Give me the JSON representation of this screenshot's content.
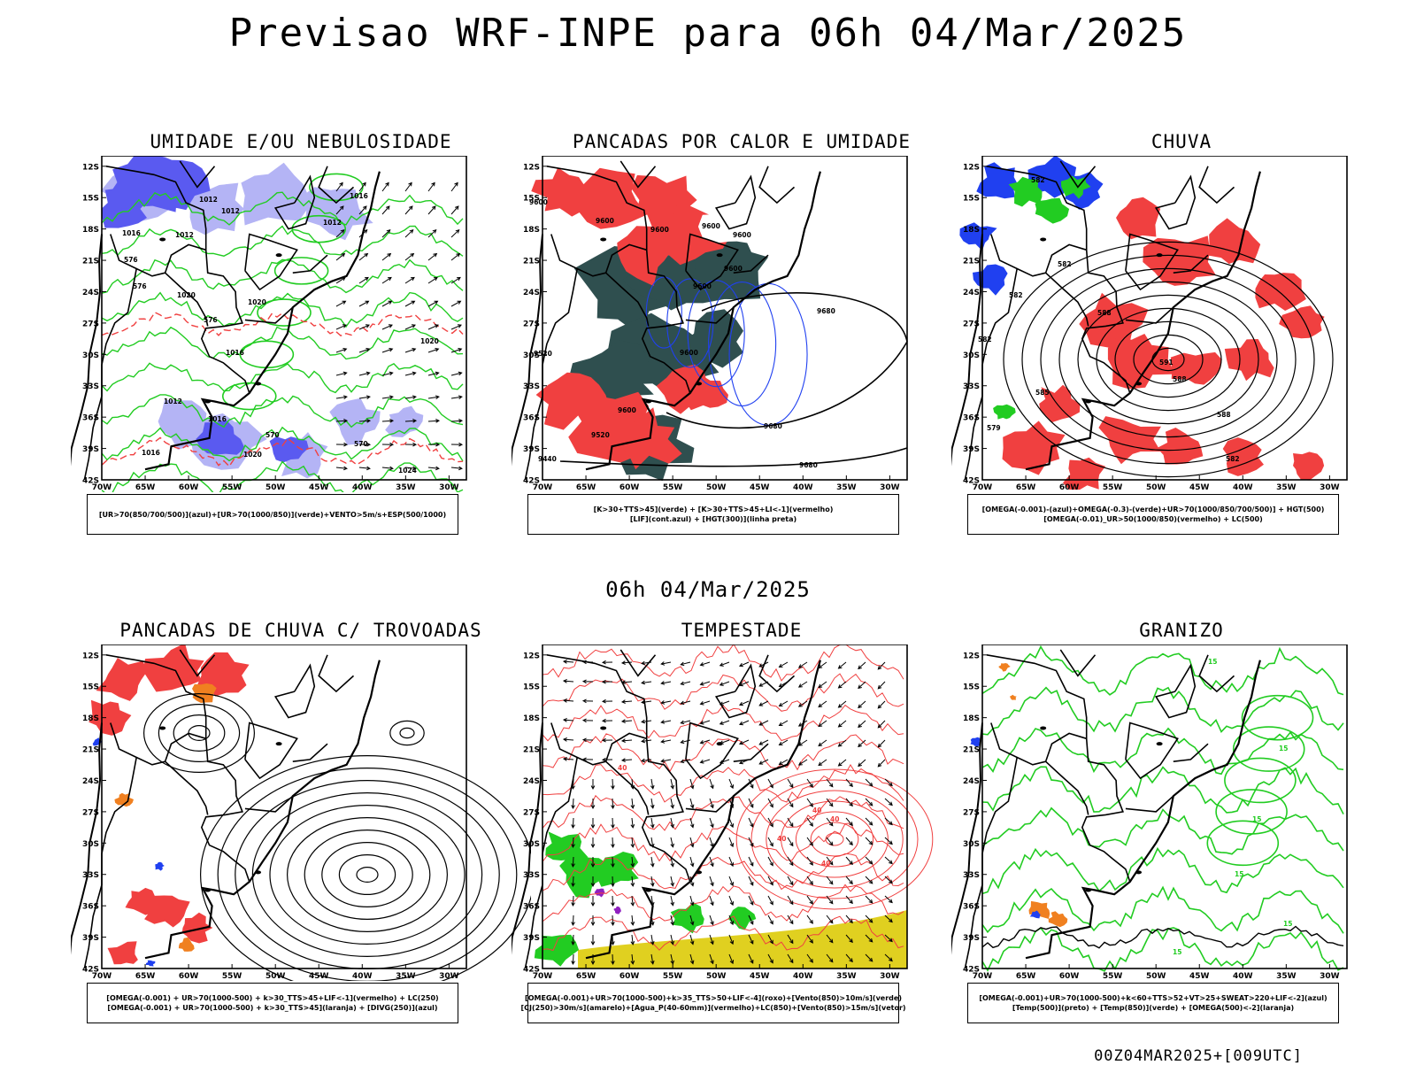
{
  "header": {
    "title": "Previsao WRF-INPE  para 06h 04/Mar/2025"
  },
  "mid_label": "06h 04/Mar/2025",
  "footer": "00Z04MAR2025+[009UTC]",
  "axes": {
    "lat_labels": [
      "12S",
      "15S",
      "18S",
      "21S",
      "24S",
      "27S",
      "30S",
      "33S",
      "36S",
      "39S",
      "42S"
    ],
    "lon_labels": [
      "70W",
      "65W",
      "60W",
      "55W",
      "50W",
      "45W",
      "40W",
      "35W",
      "30W"
    ]
  },
  "colors": {
    "humidity_blue": "#5a5af0",
    "humidity_light": "#b4b4f5",
    "green": "#22cc22",
    "red": "#f04040",
    "darkteal": "#2f4f4f",
    "blue": "#2040f0",
    "orange": "#f08020",
    "yellow": "#e0d020",
    "purple": "#9020c0"
  },
  "panels": [
    {
      "title": "UMIDADE E/OU NEBULOSIDADE",
      "legend": [
        "[UR>70(850/700/500)](azul)+[UR>70(1000/850)](verde)+VENTO>5m/s+ESP(500/1000)"
      ],
      "labels": [
        {
          "text": "1012"
        },
        {
          "text": "1012"
        },
        {
          "text": "1012"
        },
        {
          "text": "1016"
        },
        {
          "text": "1016"
        },
        {
          "text": "1012"
        },
        {
          "text": "1020"
        },
        {
          "text": "1020"
        },
        {
          "text": "1020"
        },
        {
          "text": "1016"
        },
        {
          "text": "1012"
        },
        {
          "text": "1016"
        },
        {
          "text": "1016"
        },
        {
          "text": "1020"
        },
        {
          "text": "1024"
        },
        {
          "text": "576"
        },
        {
          "text": "570"
        },
        {
          "text": "576"
        },
        {
          "text": "576"
        },
        {
          "text": "570"
        }
      ]
    },
    {
      "title": "PANCADAS POR CALOR E UMIDADE",
      "legend": [
        "[K>30+TTS>45](verde) + [K>30+TTS>45+LI<-1](vermelho)",
        "[LIF](cont.azul) + [HGT(300)](linha preta)"
      ],
      "labels": [
        {
          "text": "9600"
        },
        {
          "text": "9600"
        },
        {
          "text": "9600"
        },
        {
          "text": "9600"
        },
        {
          "text": "9600"
        },
        {
          "text": "9680"
        },
        {
          "text": "9680"
        },
        {
          "text": "9680"
        },
        {
          "text": "9600"
        },
        {
          "text": "9600"
        },
        {
          "text": "9520"
        },
        {
          "text": "9520"
        },
        {
          "text": "9440"
        },
        {
          "text": "9600"
        },
        {
          "text": "9600"
        }
      ]
    },
    {
      "title": "CHUVA",
      "legend": [
        "[OMEGA(-0.001)-(azul)+OMEGA(-0.3)-(verde)+UR>70(1000/850/700/500)] + HGT(500)",
        "[OMEGA(-0.01)_UR>50(1000/850)(vermelho) + LC(500)"
      ],
      "labels": [
        {
          "text": "582"
        },
        {
          "text": "582"
        },
        {
          "text": "582"
        },
        {
          "text": "582"
        },
        {
          "text": "585"
        },
        {
          "text": "591"
        },
        {
          "text": "588"
        },
        {
          "text": "588"
        },
        {
          "text": "582"
        },
        {
          "text": "579"
        },
        {
          "text": "588"
        }
      ]
    },
    {
      "title": "PANCADAS DE CHUVA C/ TROVOADAS",
      "legend": [
        "[OMEGA(-0.001) + UR>70(1000-500) + k>30_TTS>45+LIF<-1](vermelho) + LC(250)",
        "[OMEGA(-0.001) + UR>70(1000-500) + k>30_TTS>45](laranja) + [DIVG(250)](azul)"
      ],
      "labels": []
    },
    {
      "title": "TEMPESTADE",
      "legend": [
        "[OMEGA(-0.001)+UR>70(1000-500)+k>35_TTS>50+LIF<-4](roxo)+[Vento(850)>10m/s](verde)",
        "[CJ(250)>30m/s](amarelo)+[Agua_P(40-60mm)](vermelho)+LC(850)+[Vento(850)>15m/s](vetor)"
      ],
      "labels": [
        {
          "text": "40"
        },
        {
          "text": "40"
        },
        {
          "text": "40"
        },
        {
          "text": "40"
        },
        {
          "text": "40"
        }
      ]
    },
    {
      "title": "GRANIZO",
      "legend": [
        "[OMEGA(-0.001)+UR>70(1000-500)+k<60+TTS>52+VT>25+SWEAT>220+LIF<-2](azul)",
        "[Temp(500)](preto) + [Temp(850)](verde) + [OMEGA(500)<-2](laranja)"
      ],
      "labels": [
        {
          "text": "15"
        },
        {
          "text": "15"
        },
        {
          "text": "15"
        },
        {
          "text": "15"
        },
        {
          "text": "15"
        },
        {
          "text": "15"
        }
      ]
    }
  ]
}
